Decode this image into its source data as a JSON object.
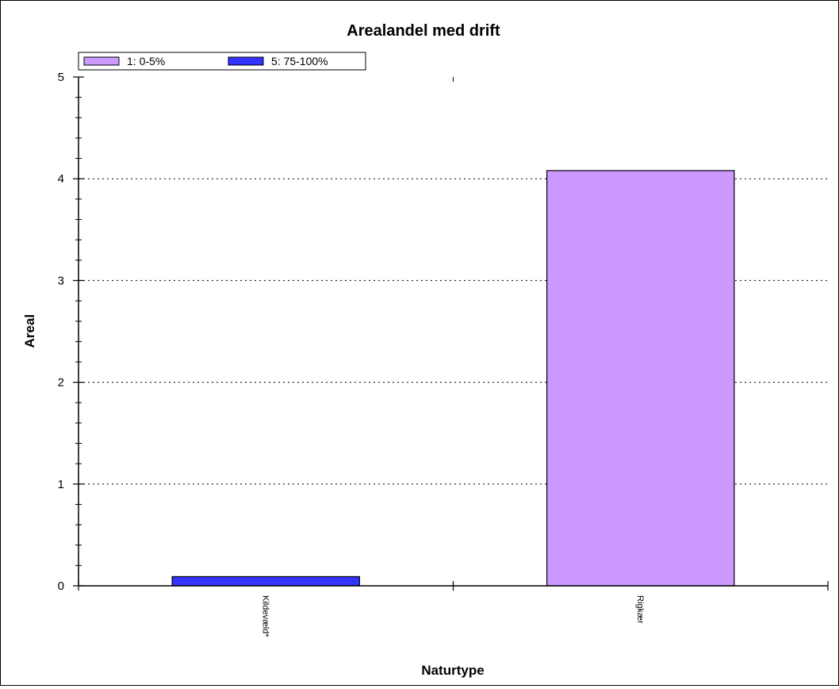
{
  "chart_data": {
    "type": "bar",
    "title": "Arealandel med drift",
    "xlabel": "Naturtype",
    "ylabel": "Areal",
    "categories": [
      "Kildevæld*",
      "Rigkær"
    ],
    "series": [
      {
        "name": "1: 0-5%",
        "color": "#cc99ff",
        "values": [
          0,
          4.08
        ]
      },
      {
        "name": "5: 75-100%",
        "color": "#3333ff",
        "values": [
          0.09,
          0
        ]
      }
    ],
    "ylim": [
      0,
      5
    ],
    "yticks": [
      0,
      1,
      2,
      3,
      4,
      5
    ],
    "grid": true,
    "legend_position": "top-left"
  }
}
